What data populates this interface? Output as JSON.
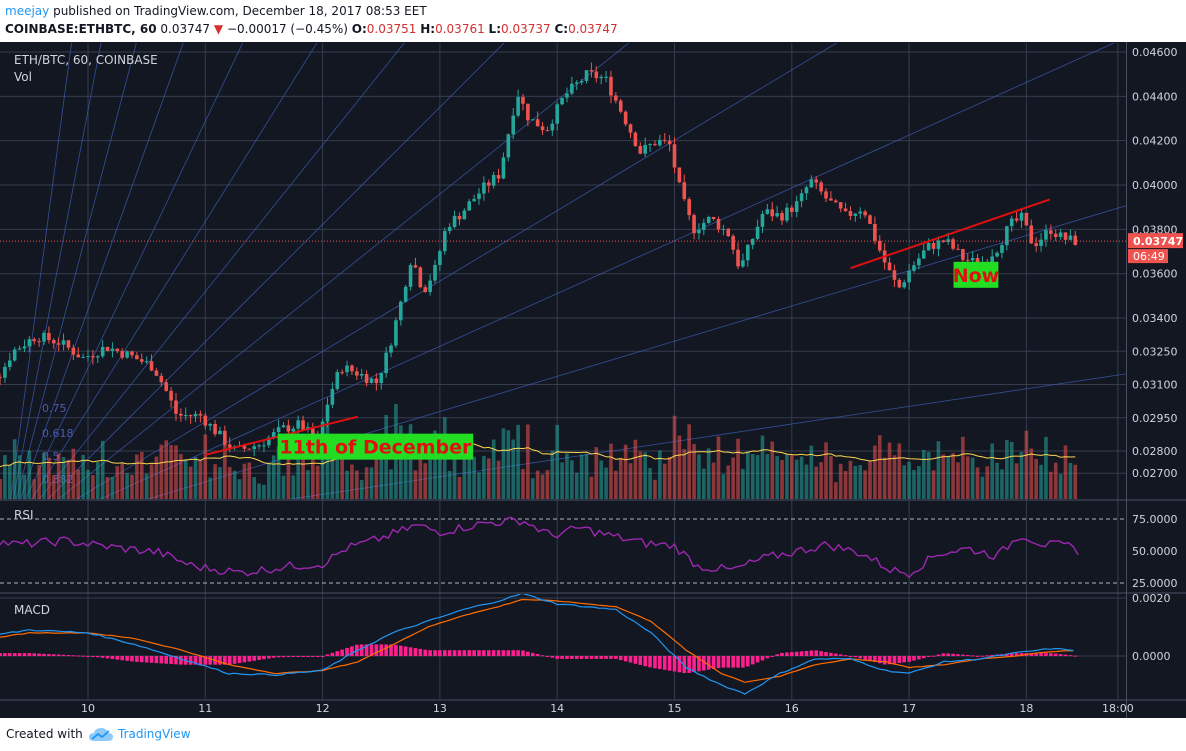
{
  "header": {
    "author": "meejay",
    "published_text": "published on TradingView.com, December 18, 2017 08:53 EET",
    "symbol": "COINBASE:ETHBTC, 60",
    "last": "0.03747",
    "change": "−0.00017 (−0.45%)",
    "ohlc": [
      {
        "label": "O:",
        "value": "0.03751"
      },
      {
        "label": "H:",
        "value": "0.03761"
      },
      {
        "label": "L:",
        "value": "0.03737"
      },
      {
        "label": "C:",
        "value": "0.03747"
      }
    ]
  },
  "footer": {
    "created_with": "Created with",
    "brand": "TradingView"
  },
  "colors": {
    "background": "#131722",
    "up": "#26a69a",
    "down": "#ef5350",
    "trendline": "#e01010",
    "annotation_bg": "#22dd22",
    "annotation_text": "#e01010",
    "rsi": "#9c27b0",
    "macd": "#2196f3",
    "signal": "#ff6d00",
    "histogram": "#ff1f8f",
    "volume_ma": "#ffd54f",
    "fan": "#3f63c0",
    "price_line": "#ef5350"
  },
  "chart_data": [
    {
      "type": "candlestick",
      "legend": [
        "ETH/BTC, 60, COINBASE",
        "Vol"
      ],
      "x_labels": [
        "10",
        "11",
        "12",
        "13",
        "14",
        "15",
        "16",
        "17",
        "18",
        "18:00"
      ],
      "y_ticks": [
        "0.04600",
        "0.04400",
        "0.04200",
        "0.04000",
        "0.03800",
        "0.03600",
        "0.03400",
        "0.03250",
        "0.03100",
        "0.02950",
        "0.02800",
        "0.02700"
      ],
      "y_tick_values": [
        0.046,
        0.044,
        0.042,
        0.04,
        0.038,
        0.036,
        0.034,
        0.0325,
        0.031,
        0.0295,
        0.028,
        0.027
      ],
      "last_price_label": "0.03747",
      "countdown_label": "06:49",
      "fib_labels": [
        "0.75",
        "0.618",
        "0.5",
        "0.382"
      ],
      "path": [
        [
          9.3,
          0.0315
        ],
        [
          9.4,
          0.0325
        ],
        [
          9.6,
          0.0332
        ],
        [
          9.8,
          0.0329
        ],
        [
          10.0,
          0.0322
        ],
        [
          10.2,
          0.0327
        ],
        [
          10.4,
          0.0323
        ],
        [
          10.6,
          0.0318
        ],
        [
          10.7,
          0.0308
        ],
        [
          10.8,
          0.0296
        ],
        [
          11.0,
          0.0296
        ],
        [
          11.2,
          0.0285
        ],
        [
          11.3,
          0.028
        ],
        [
          11.5,
          0.0283
        ],
        [
          11.7,
          0.029
        ],
        [
          11.85,
          0.0292
        ],
        [
          12.0,
          0.0284
        ],
        [
          12.1,
          0.0305
        ],
        [
          12.2,
          0.0318
        ],
        [
          12.35,
          0.0315
        ],
        [
          12.5,
          0.0311
        ],
        [
          12.6,
          0.0325
        ],
        [
          12.7,
          0.0345
        ],
        [
          12.8,
          0.0368
        ],
        [
          12.9,
          0.0352
        ],
        [
          13.0,
          0.0362
        ],
        [
          13.1,
          0.0382
        ],
        [
          13.2,
          0.0386
        ],
        [
          13.4,
          0.0398
        ],
        [
          13.55,
          0.0405
        ],
        [
          13.7,
          0.0442
        ],
        [
          13.8,
          0.043
        ],
        [
          13.95,
          0.0425
        ],
        [
          14.1,
          0.044
        ],
        [
          14.3,
          0.045
        ],
        [
          14.45,
          0.0448
        ],
        [
          14.6,
          0.0432
        ],
        [
          14.75,
          0.0415
        ],
        [
          14.9,
          0.042
        ],
        [
          15.0,
          0.0418
        ],
        [
          15.1,
          0.0395
        ],
        [
          15.2,
          0.038
        ],
        [
          15.35,
          0.0385
        ],
        [
          15.5,
          0.0378
        ],
        [
          15.6,
          0.0362
        ],
        [
          15.7,
          0.0375
        ],
        [
          15.8,
          0.0388
        ],
        [
          15.95,
          0.0386
        ],
        [
          16.1,
          0.0392
        ],
        [
          16.2,
          0.0402
        ],
        [
          16.35,
          0.0393
        ],
        [
          16.5,
          0.0386
        ],
        [
          16.65,
          0.039
        ],
        [
          16.75,
          0.0376
        ],
        [
          16.85,
          0.0363
        ],
        [
          16.95,
          0.0353
        ],
        [
          17.05,
          0.0362
        ],
        [
          17.2,
          0.0372
        ],
        [
          17.35,
          0.0375
        ],
        [
          17.5,
          0.0367
        ],
        [
          17.65,
          0.0364
        ],
        [
          17.8,
          0.0372
        ],
        [
          17.9,
          0.0382
        ],
        [
          18.0,
          0.0385
        ],
        [
          18.1,
          0.0373
        ],
        [
          18.25,
          0.038
        ],
        [
          18.35,
          0.0376
        ],
        [
          18.45,
          0.03747
        ]
      ],
      "annotations": [
        {
          "text": "11th of December",
          "x": 12.45,
          "y": 0.0282
        },
        {
          "text": "Now",
          "x": 17.57,
          "y": 0.03595
        }
      ],
      "trendlines": [
        [
          [
            11.0,
            0.02783
          ],
          [
            12.3,
            0.02955
          ]
        ],
        [
          [
            16.5,
            0.03625
          ],
          [
            18.2,
            0.03935
          ]
        ]
      ]
    },
    {
      "type": "line",
      "title": "RSI",
      "y_ticks": [
        "75.0000",
        "50.0000",
        "25.0000"
      ],
      "y_tick_values": [
        75,
        50,
        25
      ],
      "ylim": [
        18,
        86
      ],
      "path": [
        [
          9.0,
          61
        ],
        [
          9.4,
          55
        ],
        [
          9.8,
          58
        ],
        [
          10.2,
          53
        ],
        [
          10.6,
          49
        ],
        [
          10.9,
          38
        ],
        [
          11.3,
          33
        ],
        [
          11.7,
          38
        ],
        [
          12.0,
          40
        ],
        [
          12.2,
          52
        ],
        [
          12.5,
          60
        ],
        [
          12.8,
          70
        ],
        [
          13.0,
          65
        ],
        [
          13.4,
          72
        ],
        [
          13.7,
          74
        ],
        [
          13.95,
          62
        ],
        [
          14.2,
          68
        ],
        [
          14.45,
          62
        ],
        [
          14.75,
          56
        ],
        [
          15.0,
          54
        ],
        [
          15.2,
          38
        ],
        [
          15.5,
          35
        ],
        [
          15.75,
          44
        ],
        [
          16.0,
          49
        ],
        [
          16.3,
          55
        ],
        [
          16.6,
          48
        ],
        [
          16.85,
          35
        ],
        [
          17.0,
          33
        ],
        [
          17.25,
          48
        ],
        [
          17.5,
          52
        ],
        [
          17.75,
          46
        ],
        [
          17.95,
          63
        ],
        [
          18.15,
          55
        ],
        [
          18.35,
          54
        ],
        [
          18.45,
          50
        ]
      ]
    },
    {
      "type": "line",
      "title": "MACD",
      "y_ticks": [
        "0.0020",
        "0.0000"
      ],
      "y_tick_values": [
        0.002,
        0.0
      ],
      "ylim": [
        -0.0018,
        0.0025
      ],
      "series": [
        {
          "name": "MACD",
          "points": [
            [
              9.0,
              0.0006
            ],
            [
              9.5,
              0.0009
            ],
            [
              10.0,
              0.0008
            ],
            [
              10.4,
              0.0004
            ],
            [
              10.8,
              -0.0001
            ],
            [
              11.2,
              -0.0006
            ],
            [
              11.6,
              -0.00065
            ],
            [
              12.0,
              -0.0005
            ],
            [
              12.3,
              0.0002
            ],
            [
              12.6,
              0.0008
            ],
            [
              12.9,
              0.0012
            ],
            [
              13.2,
              0.0016
            ],
            [
              13.5,
              0.0019
            ],
            [
              13.7,
              0.00215
            ],
            [
              14.0,
              0.0018
            ],
            [
              14.5,
              0.0016
            ],
            [
              14.8,
              0.0008
            ],
            [
              15.1,
              -0.0004
            ],
            [
              15.4,
              -0.001
            ],
            [
              15.6,
              -0.0013
            ],
            [
              15.9,
              -0.0006
            ],
            [
              16.2,
              -0.0001
            ],
            [
              16.5,
              -0.0001
            ],
            [
              16.8,
              -0.0005
            ],
            [
              17.0,
              -0.0006
            ],
            [
              17.3,
              -0.0002
            ],
            [
              17.6,
              -0.0001
            ],
            [
              17.9,
              0.0001
            ],
            [
              18.2,
              0.00025
            ],
            [
              18.45,
              0.0002
            ]
          ]
        },
        {
          "name": "Signal",
          "points": [
            [
              9.0,
              0.0005
            ],
            [
              9.5,
              0.0008
            ],
            [
              10.0,
              0.0008
            ],
            [
              10.4,
              0.0006
            ],
            [
              10.8,
              0.0002
            ],
            [
              11.2,
              -0.0003
            ],
            [
              11.6,
              -0.0006
            ],
            [
              12.0,
              -0.0005
            ],
            [
              12.3,
              -0.0002
            ],
            [
              12.6,
              0.0004
            ],
            [
              12.9,
              0.001
            ],
            [
              13.2,
              0.0014
            ],
            [
              13.5,
              0.0017
            ],
            [
              13.7,
              0.00195
            ],
            [
              14.0,
              0.0019
            ],
            [
              14.5,
              0.0017
            ],
            [
              14.8,
              0.0012
            ],
            [
              15.1,
              0.0002
            ],
            [
              15.4,
              -0.0006
            ],
            [
              15.6,
              -0.0009
            ],
            [
              15.9,
              -0.0007
            ],
            [
              16.2,
              -0.0003
            ],
            [
              16.5,
              -0.0001
            ],
            [
              16.8,
              -0.0002
            ],
            [
              17.0,
              -0.0004
            ],
            [
              17.3,
              -0.0003
            ],
            [
              17.6,
              -0.0001
            ],
            [
              17.9,
              0.0
            ],
            [
              18.2,
              0.00015
            ],
            [
              18.45,
              0.0002
            ]
          ]
        }
      ]
    }
  ]
}
